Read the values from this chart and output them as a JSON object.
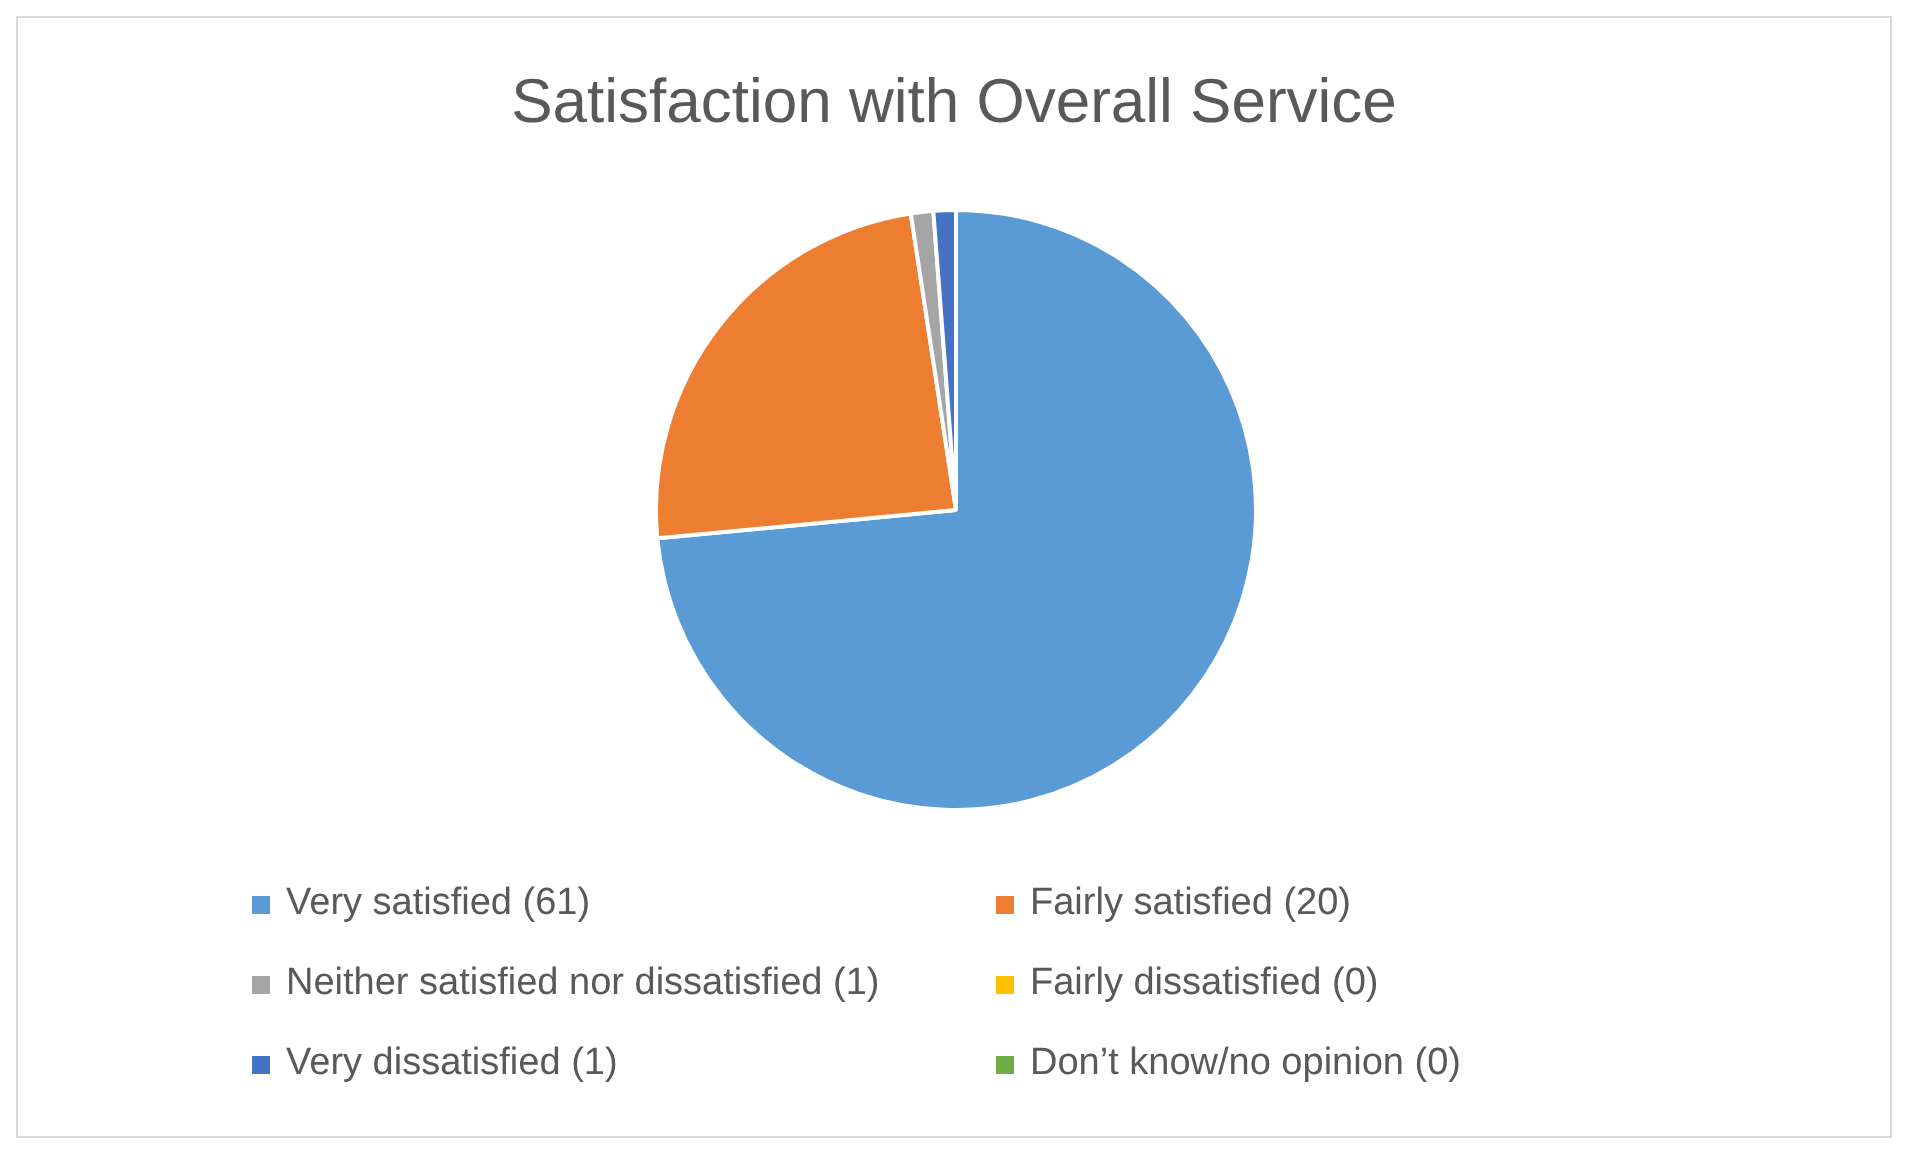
{
  "chart_data": {
    "type": "pie",
    "title": "Satisfaction with Overall Service",
    "categories": [
      "Very satisfied (61)",
      "Fairly satisfied (20)",
      "Neither satisfied nor dissatisfied (1)",
      "Fairly dissatisfied (0)",
      "Very dissatisfied (1)",
      "Don’t know/no opinion (0)"
    ],
    "values": [
      61,
      20,
      1,
      0,
      1,
      0
    ],
    "colors": [
      "#5b9bd5",
      "#ed7d31",
      "#a5a5a5",
      "#ffc000",
      "#4472c4",
      "#70ad47"
    ],
    "legend": "bottom"
  }
}
